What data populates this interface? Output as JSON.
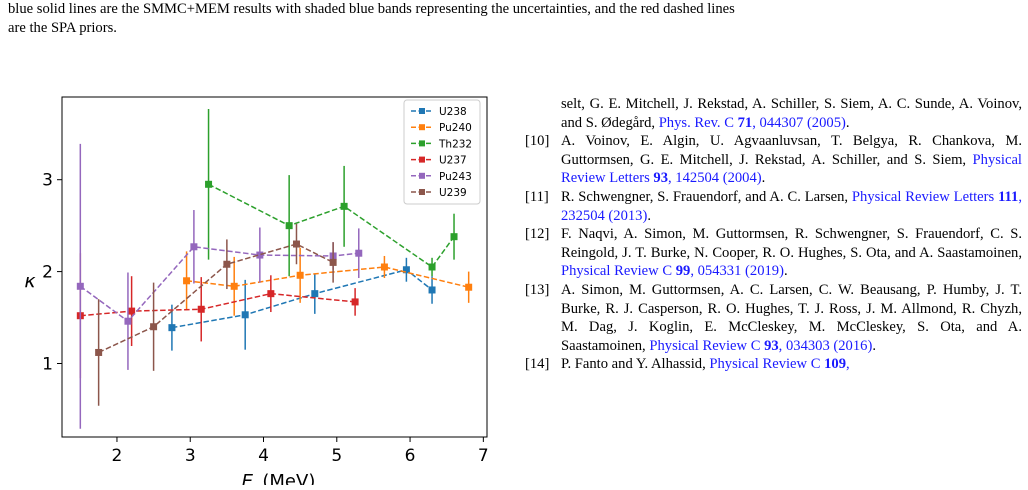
{
  "caption_tail": {
    "line1": "blue solid lines are the SMMC+MEM results with shaded blue bands representing the uncertainties, and the red dashed lines",
    "line2": "are the SPA priors."
  },
  "references": [
    {
      "num": "",
      "parts": [
        {
          "t": "selt, G. E. Mitchell, J. Rekstad, A. Schiller, S. Siem, A. C. Sunde, A. Voinov, and S. Ødegård, "
        },
        {
          "t": "Phys. Rev. C ",
          "link": true
        },
        {
          "t": "71",
          "link": true,
          "bold": true
        },
        {
          "t": ", 044307 (2005)",
          "link": true
        },
        {
          "t": "."
        }
      ]
    },
    {
      "num": "[10]",
      "parts": [
        {
          "t": "A. Voinov, E. Algin, U. Agvaanluvsan, T. Belgya, R. Chankova, M. Guttormsen, G. E. Mitchell, J. Rekstad, A. Schiller, and S. Siem, "
        },
        {
          "t": "Physical Review Letters ",
          "link": true
        },
        {
          "t": "93",
          "link": true,
          "bold": true
        },
        {
          "t": ", 142504 (2004)",
          "link": true
        },
        {
          "t": "."
        }
      ]
    },
    {
      "num": "[11]",
      "parts": [
        {
          "t": "R. Schwengner, S. Frauendorf, and A. C. Larsen, "
        },
        {
          "t": "Physical Review Letters ",
          "link": true
        },
        {
          "t": "111",
          "link": true,
          "bold": true
        },
        {
          "t": ", 232504 (2013)",
          "link": true
        },
        {
          "t": "."
        }
      ]
    },
    {
      "num": "[12]",
      "parts": [
        {
          "t": "F. Naqvi, A. Simon, M. Guttormsen, R. Schwengner, S. Frauendorf, C. S. Reingold, J. T. Burke, N. Cooper, R. O. Hughes, S. Ota, and A. Saastamoinen, "
        },
        {
          "t": "Physical Review C ",
          "link": true
        },
        {
          "t": "99",
          "link": true,
          "bold": true
        },
        {
          "t": ", 054331 (2019)",
          "link": true
        },
        {
          "t": "."
        }
      ]
    },
    {
      "num": "[13]",
      "parts": [
        {
          "t": "A. Simon, M. Guttormsen, A. C. Larsen, C. W. Beausang, P. Humby, J. T. Burke, R. J. Casperson, R. O. Hughes, T. J. Ross, J. M. Allmond, R. Chyzh, M. Dag, J. Koglin, E. McCleskey, M. McCleskey, S. Ota, and A. Saastamoinen, "
        },
        {
          "t": "Physical Review C ",
          "link": true
        },
        {
          "t": "93",
          "link": true,
          "bold": true
        },
        {
          "t": ", 034303 (2016)",
          "link": true
        },
        {
          "t": "."
        }
      ]
    },
    {
      "num": "[14]",
      "parts": [
        {
          "t": "P. Fanto and Y. Alhassid, "
        },
        {
          "t": "Physical Review C ",
          "link": true
        },
        {
          "t": "109",
          "link": true,
          "bold": true
        },
        {
          "t": ",",
          "link": true
        }
      ]
    }
  ],
  "chart_data": {
    "type": "scatter",
    "xlabel": "E_i (MeV)",
    "ylabel": "κ",
    "xlim": [
      1.25,
      7.05
    ],
    "ylim": [
      0.2,
      3.9
    ],
    "xticks": [
      2,
      3,
      4,
      5,
      6,
      7
    ],
    "yticks": [
      1,
      2,
      3
    ],
    "grid": false,
    "legend_position": "top-right",
    "line_style": "dashed with square markers and error bars",
    "series": [
      {
        "name": "U238",
        "color": "#1f77b4",
        "points": [
          [
            2.75,
            1.39,
            0.25
          ],
          [
            3.75,
            1.53,
            0.38
          ],
          [
            4.7,
            1.76,
            0.22
          ],
          [
            5.95,
            2.02,
            0.13
          ],
          [
            6.3,
            1.8,
            0.15
          ]
        ]
      },
      {
        "name": "Pu240",
        "color": "#ff7f0e",
        "points": [
          [
            2.95,
            1.9,
            0.32
          ],
          [
            3.6,
            1.84,
            0.32
          ],
          [
            4.5,
            1.96,
            0.3
          ],
          [
            5.65,
            2.05,
            0.12
          ],
          [
            6.8,
            1.83,
            0.17
          ]
        ]
      },
      {
        "name": "Th232",
        "color": "#2ca02c",
        "points": [
          [
            3.25,
            2.95,
            0.82
          ],
          [
            4.35,
            2.5,
            0.55
          ],
          [
            5.1,
            2.71,
            0.44
          ],
          [
            6.3,
            2.05,
            0.1
          ],
          [
            6.6,
            2.38,
            0.25
          ]
        ]
      },
      {
        "name": "U237",
        "color": "#d62728",
        "points": [
          [
            1.5,
            1.52,
            0.68
          ],
          [
            2.2,
            1.57,
            0.38
          ],
          [
            3.15,
            1.59,
            0.35
          ],
          [
            4.1,
            1.76,
            0.2
          ],
          [
            5.25,
            1.67,
            0.15
          ]
        ]
      },
      {
        "name": "Pu243",
        "color": "#9467bd",
        "points": [
          [
            1.5,
            1.84,
            1.55
          ],
          [
            2.15,
            1.46,
            0.53
          ],
          [
            3.05,
            2.27,
            0.4
          ],
          [
            3.95,
            2.18,
            0.3
          ],
          [
            4.95,
            2.17,
            0.15
          ],
          [
            5.3,
            2.2,
            0.27
          ]
        ]
      },
      {
        "name": "U239",
        "color": "#8c564b",
        "points": [
          [
            1.75,
            1.12,
            0.58
          ],
          [
            2.5,
            1.4,
            0.48
          ],
          [
            3.5,
            2.08,
            0.27
          ],
          [
            4.45,
            2.3,
            0.22
          ],
          [
            4.95,
            2.1,
            0.22
          ]
        ]
      }
    ]
  }
}
